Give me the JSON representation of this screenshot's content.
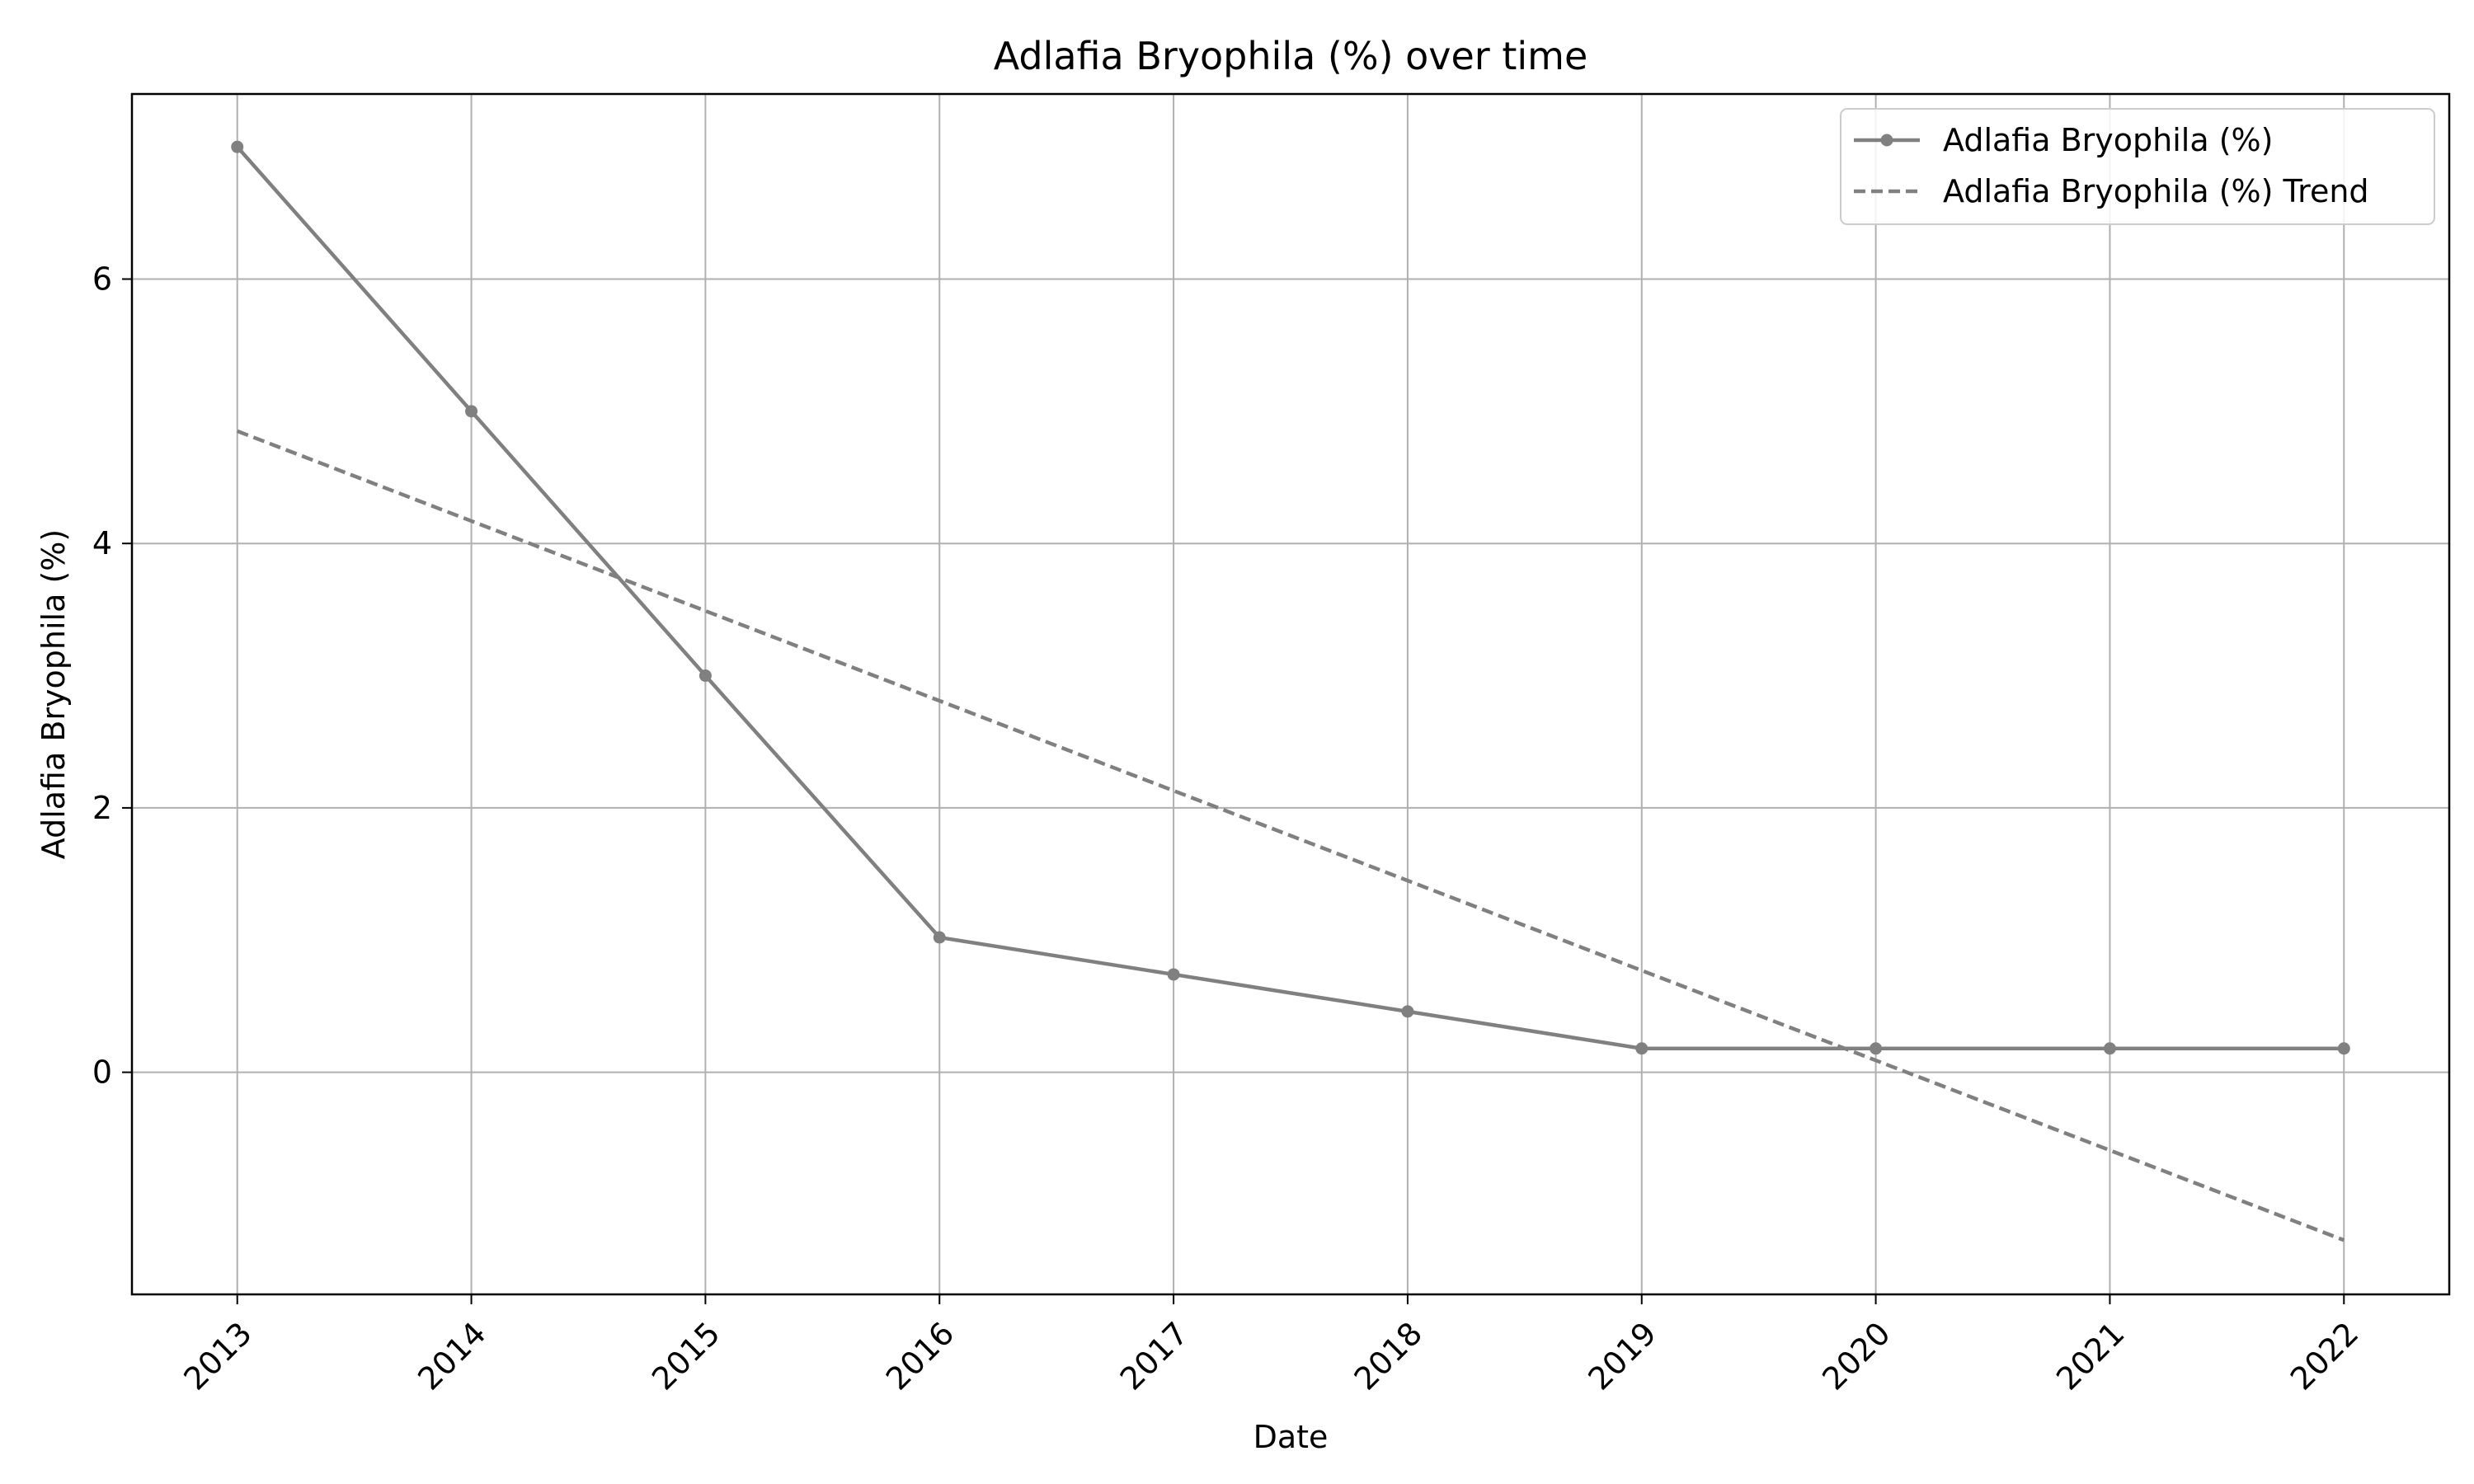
{
  "chart_data": {
    "type": "line",
    "title": "Adlafia Bryophila (%) over time",
    "xlabel": "Date",
    "ylabel": "Adlafia Bryophila (%)",
    "x": [
      "2013",
      "2014",
      "2015",
      "2016",
      "2017",
      "2018",
      "2019",
      "2020",
      "2021",
      "2022"
    ],
    "xlim": [
      2012.55,
      2022.45
    ],
    "ylim": [
      -1.68,
      7.4
    ],
    "yticks": [
      0,
      2,
      4,
      6
    ],
    "grid": true,
    "legend_position": "top-right",
    "series": [
      {
        "name": "Adlafia Bryophila (%)",
        "style": "solid-markers",
        "color": "#808080",
        "values": [
          7.0,
          5.0,
          3.0,
          1.02,
          0.74,
          0.46,
          0.18,
          0.18,
          0.18,
          0.18
        ]
      },
      {
        "name": "Adlafia Bryophila (%) Trend",
        "style": "dashed",
        "color": "#808080",
        "values": [
          4.85,
          4.17,
          3.49,
          2.81,
          2.13,
          1.45,
          0.77,
          0.09,
          -0.59,
          -1.27
        ]
      }
    ]
  }
}
